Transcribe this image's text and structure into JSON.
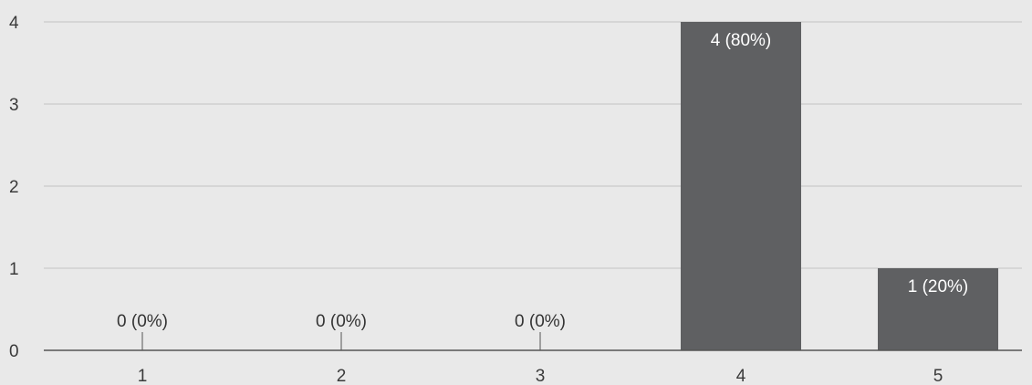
{
  "chart_data": {
    "type": "bar",
    "categories": [
      "1",
      "2",
      "3",
      "4",
      "5"
    ],
    "values": [
      0,
      0,
      0,
      4,
      1
    ],
    "data_labels": [
      "0 (0%)",
      "0 (0%)",
      "0 (0%)",
      "4 (80%)",
      "1 (20%)"
    ],
    "yticks": [
      "0",
      "1",
      "2",
      "3",
      "4"
    ],
    "ylim": [
      0,
      4
    ],
    "grid": true,
    "colors": {
      "bar": "#5f6062",
      "label_inside": "#ffffff",
      "label_outside": "#333333",
      "axis": "#555555",
      "grid": "#c4c4c4"
    }
  }
}
